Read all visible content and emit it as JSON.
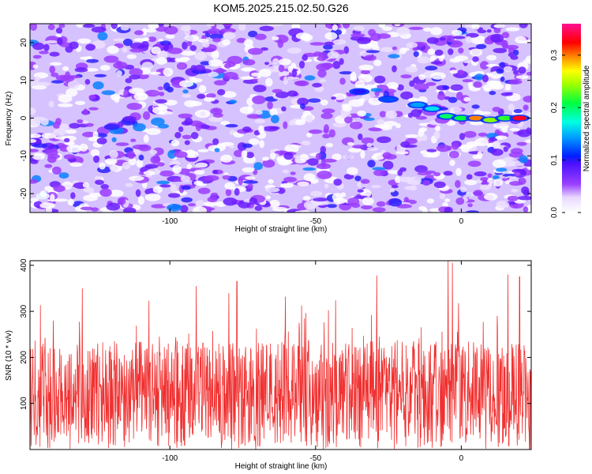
{
  "title": "KOM5.2025.215.02.50.G26",
  "chart_data": [
    {
      "type": "heatmap",
      "name": "spectrogram",
      "xlabel": "Height of straight line (km)",
      "ylabel": "Frequency (Hz)",
      "xlim": [
        -148,
        24
      ],
      "ylim": [
        -25,
        25
      ],
      "xticks": [
        -100,
        -50,
        0
      ],
      "yticks": [
        -20,
        -10,
        0,
        10,
        20
      ],
      "x_tick_labels": [
        "-100",
        "-50",
        "0"
      ],
      "y_tick_labels": [
        "-20",
        "-10",
        "0",
        "10",
        "20"
      ],
      "colorbar": {
        "label": "Normalized spectral amplitude",
        "range": [
          0,
          0.36
        ],
        "ticks": [
          0.0,
          0.1,
          0.2,
          0.3
        ],
        "tick_labels": [
          "0.0",
          "0.1",
          "0.2",
          "0.3"
        ],
        "colormap": "white-purple-blue-cyan-green-yellow-red-magenta"
      },
      "background_level": 0.05,
      "signal_track": [
        {
          "x": -35,
          "y": 7,
          "amplitude": 0.1
        },
        {
          "x": -25,
          "y": 5,
          "amplitude": 0.12
        },
        {
          "x": -15,
          "y": 3.5,
          "amplitude": 0.14
        },
        {
          "x": -10,
          "y": 2.5,
          "amplitude": 0.16
        },
        {
          "x": -5,
          "y": 0.5,
          "amplitude": 0.2
        },
        {
          "x": 0,
          "y": 0,
          "amplitude": 0.21
        },
        {
          "x": 5,
          "y": 0,
          "amplitude": 0.3
        },
        {
          "x": 10,
          "y": -0.5,
          "amplitude": 0.24
        },
        {
          "x": 15,
          "y": 0,
          "amplitude": 0.22
        },
        {
          "x": 20,
          "y": 0,
          "amplitude": 0.33
        }
      ]
    },
    {
      "type": "line",
      "name": "snr",
      "xlabel": "Height of straight line (km)",
      "ylabel": "SNR (10 * v/v)",
      "xlim": [
        -148,
        24
      ],
      "ylim": [
        0,
        410
      ],
      "xticks": [
        -100,
        -50,
        0
      ],
      "yticks": [
        100,
        200,
        300,
        400
      ],
      "x_tick_labels": [
        "-100",
        "-50",
        "0"
      ],
      "y_tick_labels": [
        "100",
        "200",
        "300",
        "400"
      ],
      "color": "#f03030",
      "mean": 130,
      "range": [
        0,
        410
      ],
      "notable_peaks": [
        {
          "x": -140,
          "y": 280
        },
        {
          "x": -130,
          "y": 350
        },
        {
          "x": -91,
          "y": 355
        },
        {
          "x": -77,
          "y": 365
        },
        {
          "x": -29,
          "y": 378
        },
        {
          "x": -4.5,
          "y": 410
        },
        {
          "x": -3,
          "y": 405
        },
        {
          "x": 16,
          "y": 380
        },
        {
          "x": 20,
          "y": 375
        }
      ]
    }
  ]
}
